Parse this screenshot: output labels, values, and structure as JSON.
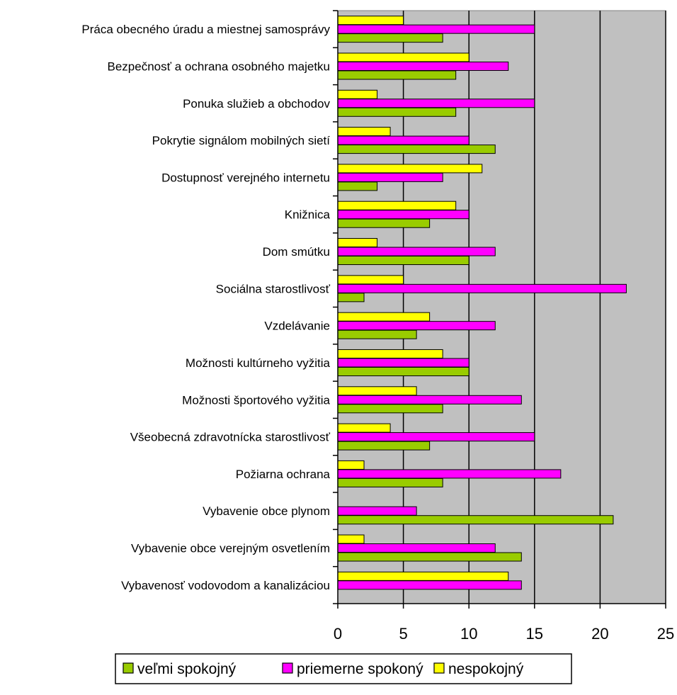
{
  "chart_data": {
    "type": "bar",
    "orientation": "horizontal",
    "categories": [
      "Práca obecného úradu a miestnej samosprávy",
      "Bezpečnosť a ochrana osobného majetku",
      "Ponuka služieb a obchodov",
      "Pokrytie signálom mobilných sietí",
      "Dostupnosť verejného internetu",
      "Knižnica",
      "Dom smútku",
      "Sociálna starostlivosť",
      "Vzdelávanie",
      "Možnosti kultúrneho vyžitia",
      "Možnosti športového vyžitia",
      "Všeobecná zdravotnícka starostlivosť",
      "Požiarna ochrana",
      "Vybavenie obce plynom",
      "Vybavenie obce verejným osvetlením",
      "Vybavenosť vodovodom a kanalizáciou"
    ],
    "series": [
      {
        "name": "nespokojný",
        "color": "#ffff00",
        "values": [
          5,
          10,
          3,
          4,
          11,
          9,
          3,
          5,
          7,
          8,
          6,
          4,
          2,
          0,
          2,
          13
        ]
      },
      {
        "name": "priemerne spokoný",
        "color": "#ff00ff",
        "values": [
          15,
          13,
          15,
          10,
          8,
          10,
          12,
          22,
          12,
          10,
          14,
          15,
          17,
          6,
          12,
          14
        ]
      },
      {
        "name": "veľmi spokojný",
        "color": "#99cc00",
        "values": [
          8,
          9,
          9,
          12,
          3,
          7,
          10,
          2,
          6,
          10,
          8,
          7,
          8,
          21,
          14,
          0
        ]
      }
    ],
    "legend_order": [
      "veľmi spokojný",
      "priemerne spokoný",
      "nespokojný"
    ],
    "xlim": [
      0,
      25
    ],
    "xticks": [
      0,
      5,
      10,
      15,
      20,
      25
    ],
    "gridlines": true,
    "plot_background": "#c0c0c0",
    "legend_position": "bottom"
  }
}
